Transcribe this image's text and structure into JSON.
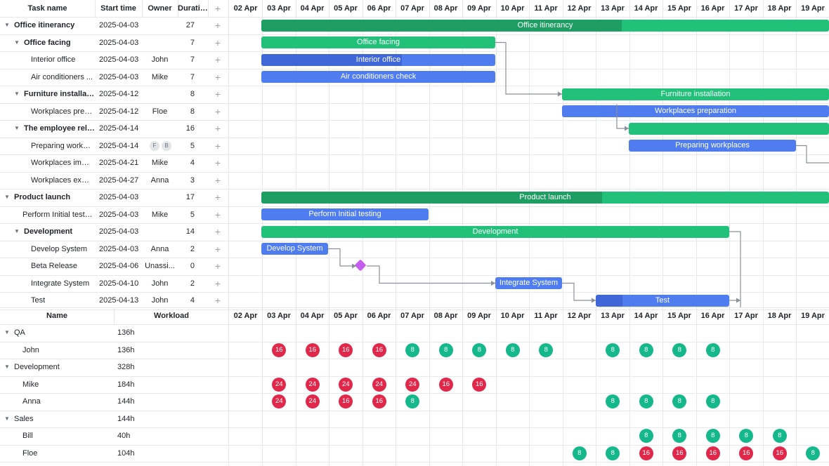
{
  "grid_headers": {
    "task_name": "Task name",
    "start_time": "Start time",
    "owner": "Owner",
    "duration": "Duration",
    "add": "+"
  },
  "dates": [
    "02 Apr",
    "03 Apr",
    "04 Apr",
    "05 Apr",
    "06 Apr",
    "07 Apr",
    "08 Apr",
    "09 Apr",
    "10 Apr",
    "11 Apr",
    "12 Apr",
    "13 Apr",
    "14 Apr",
    "15 Apr",
    "16 Apr",
    "17 Apr",
    "18 Apr",
    "19 Apr"
  ],
  "tasks": [
    {
      "name": "Office itinerancy",
      "start": "2025-04-03",
      "owner": "",
      "duration": "27",
      "level": 0,
      "parent": true,
      "bar": "Office itinerancy"
    },
    {
      "name": "Office facing",
      "start": "2025-04-03",
      "owner": "",
      "duration": "7",
      "level": 1,
      "parent": true,
      "bar": "Office facing"
    },
    {
      "name": "Interior office",
      "start": "2025-04-03",
      "owner": "John",
      "duration": "7",
      "level": 2,
      "parent": false,
      "bar": "Interior office"
    },
    {
      "name": "Air conditioners ...",
      "start": "2025-04-03",
      "owner": "Mike",
      "duration": "7",
      "level": 2,
      "parent": false,
      "bar": "Air conditioners check"
    },
    {
      "name": "Furniture installation",
      "start": "2025-04-12",
      "owner": "",
      "duration": "8",
      "level": 1,
      "parent": true,
      "bar": "Furniture installation"
    },
    {
      "name": "Workplaces prep...",
      "start": "2025-04-12",
      "owner": "Floe",
      "duration": "8",
      "level": 2,
      "parent": false,
      "bar": "Workplaces preparation"
    },
    {
      "name": "The employee relo...",
      "start": "2025-04-14",
      "owner": "",
      "duration": "16",
      "level": 1,
      "parent": true,
      "bar": ""
    },
    {
      "name": "Preparing workpl...",
      "start": "2025-04-14",
      "owner": "",
      "avatars": [
        "F",
        "B"
      ],
      "duration": "5",
      "level": 2,
      "parent": false,
      "bar": "Preparing workplaces"
    },
    {
      "name": "Workplaces impo...",
      "start": "2025-04-21",
      "owner": "Mike",
      "duration": "4",
      "level": 2,
      "parent": false,
      "bar": ""
    },
    {
      "name": "Workplaces expo...",
      "start": "2025-04-27",
      "owner": "Anna",
      "duration": "3",
      "level": 2,
      "parent": false,
      "bar": ""
    },
    {
      "name": "Product launch",
      "start": "2025-04-03",
      "owner": "",
      "duration": "17",
      "level": 0,
      "parent": true,
      "bar": "Product launch"
    },
    {
      "name": "Perform Initial testing",
      "start": "2025-04-03",
      "owner": "Mike",
      "duration": "5",
      "level": 1,
      "parent": false,
      "bar": "Perform Initial testing"
    },
    {
      "name": "Development",
      "start": "2025-04-03",
      "owner": "",
      "duration": "14",
      "level": 1,
      "parent": true,
      "bar": "Development"
    },
    {
      "name": "Develop System",
      "start": "2025-04-03",
      "owner": "Anna",
      "duration": "2",
      "level": 2,
      "parent": false,
      "bar": "Develop System"
    },
    {
      "name": "Beta Release",
      "start": "2025-04-06",
      "owner": "Unassi...",
      "duration": "0",
      "level": 2,
      "parent": false,
      "bar": ""
    },
    {
      "name": "Integrate System",
      "start": "2025-04-10",
      "owner": "John",
      "duration": "2",
      "level": 2,
      "parent": false,
      "bar": "Integrate System"
    },
    {
      "name": "Test",
      "start": "2025-04-13",
      "owner": "John",
      "duration": "4",
      "level": 2,
      "parent": false,
      "bar": "Test"
    }
  ],
  "resource_headers": {
    "name": "Name",
    "workload": "Workload"
  },
  "resources": [
    {
      "name": "QA",
      "workload": "136h",
      "group": true,
      "loads": {}
    },
    {
      "name": "John",
      "workload": "136h",
      "group": false,
      "loads": {
        "03 Apr": "16",
        "04 Apr": "16",
        "05 Apr": "16",
        "06 Apr": "16",
        "07 Apr": "8",
        "08 Apr": "8",
        "09 Apr": "8",
        "10 Apr": "8",
        "11 Apr": "8",
        "13 Apr": "8",
        "14 Apr": "8",
        "15 Apr": "8",
        "16 Apr": "8"
      }
    },
    {
      "name": "Development",
      "workload": "328h",
      "group": true,
      "loads": {}
    },
    {
      "name": "Mike",
      "workload": "184h",
      "group": false,
      "loads": {
        "03 Apr": "24",
        "04 Apr": "24",
        "05 Apr": "24",
        "06 Apr": "24",
        "07 Apr": "24",
        "08 Apr": "16",
        "09 Apr": "16"
      }
    },
    {
      "name": "Anna",
      "workload": "144h",
      "group": false,
      "loads": {
        "03 Apr": "24",
        "04 Apr": "24",
        "05 Apr": "16",
        "06 Apr": "16",
        "07 Apr": "8",
        "13 Apr": "8",
        "14 Apr": "8",
        "15 Apr": "8",
        "16 Apr": "8"
      }
    },
    {
      "name": "Sales",
      "workload": "144h",
      "group": true,
      "loads": {}
    },
    {
      "name": "Bill",
      "workload": "40h",
      "group": false,
      "loads": {
        "14 Apr": "8",
        "15 Apr": "8",
        "16 Apr": "8",
        "17 Apr": "8",
        "18 Apr": "8"
      }
    },
    {
      "name": "Floe",
      "workload": "104h",
      "group": false,
      "loads": {
        "12 Apr": "8",
        "13 Apr": "8",
        "14 Apr": "16",
        "15 Apr": "16",
        "16 Apr": "16",
        "17 Apr": "16",
        "18 Apr": "16",
        "19 Apr": "8"
      }
    }
  ],
  "colors": {
    "summary_bar": "#22c17a",
    "task_bar": "#4f7df0",
    "milestone": "#c45ef0",
    "overload": "#e0284a",
    "normal_load": "#14b88a"
  },
  "icons": {
    "expand": "chevron-down-icon",
    "add": "plus-icon",
    "milestone": "diamond-icon"
  }
}
